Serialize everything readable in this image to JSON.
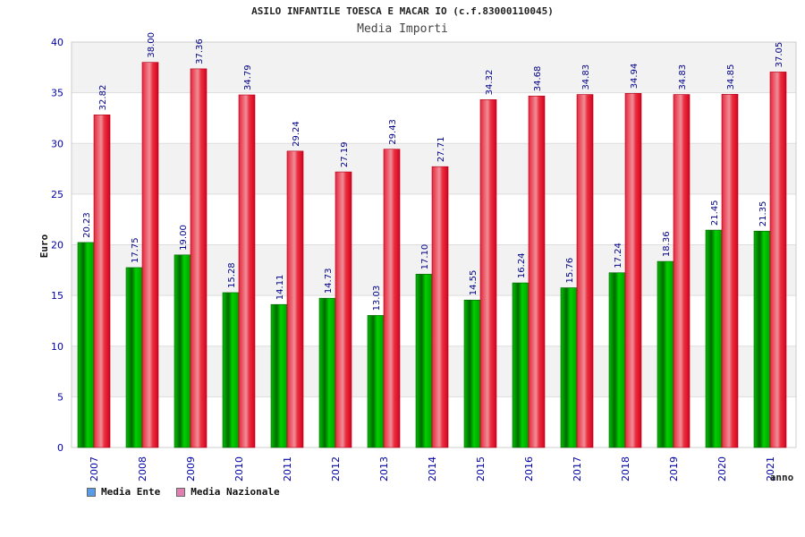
{
  "chart_data": {
    "type": "bar",
    "title": "ASILO INFANTILE TOESCA E MACAR IO (c.f.83000110045)",
    "subtitle": "Media Importi",
    "xlabel": "anno",
    "ylabel": "Euro",
    "ylim": [
      0,
      40
    ],
    "yticks": [
      0,
      5,
      10,
      15,
      20,
      25,
      30,
      35,
      40
    ],
    "categories": [
      "2007",
      "2008",
      "2009",
      "2010",
      "2011",
      "2012",
      "2013",
      "2014",
      "2015",
      "2016",
      "2017",
      "2018",
      "2019",
      "2020",
      "2021"
    ],
    "series": [
      {
        "name": "Media Ente",
        "values": [
          20.23,
          17.75,
          19.0,
          15.28,
          14.11,
          14.73,
          13.03,
          17.1,
          14.55,
          16.24,
          15.76,
          17.24,
          18.36,
          21.45,
          21.35
        ]
      },
      {
        "name": "Media Nazionale",
        "values": [
          32.82,
          38.0,
          37.36,
          34.79,
          29.24,
          27.19,
          29.43,
          27.71,
          34.32,
          34.68,
          34.83,
          34.94,
          34.83,
          34.85,
          37.05
        ]
      }
    ],
    "value_labels": [
      [
        "20.23",
        "17.75",
        "19.00",
        "15.28",
        "14.11",
        "14.73",
        "13.03",
        "17.10",
        "14.55",
        "16.24",
        "15.76",
        "17.24",
        "18.36",
        "21.45",
        "21.35"
      ],
      [
        "32.82",
        "38.00",
        "37.36",
        "34.79",
        "29.24",
        "27.19",
        "29.43",
        "27.71",
        "34.32",
        "34.68",
        "34.83",
        "34.94",
        "34.83",
        "34.85",
        "37.05"
      ]
    ],
    "grid": true,
    "legend_position": "bottom-left",
    "colors": {
      "series1": "#00a000",
      "series1_dark": "#006000",
      "series2": "#e8243a",
      "series2_dark": "#b00018",
      "legend1": "#5a9be6",
      "legend2": "#e080b0",
      "band": "#f2f2f2",
      "axis_text": "#0000aa"
    }
  }
}
